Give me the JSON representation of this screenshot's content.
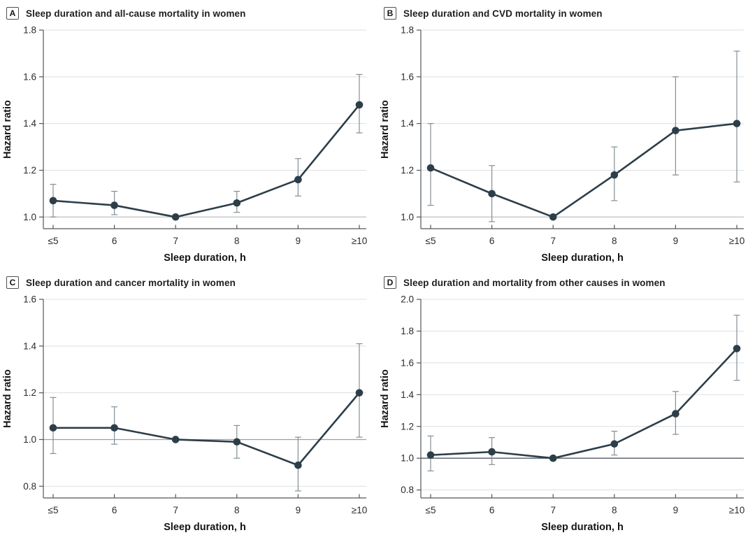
{
  "figure": {
    "background": "#ffffff",
    "series_color": "#2d3e49",
    "error_bar_color": "#848f96",
    "gridline_color": "#dcdfe1",
    "axis_color": "#50575c",
    "tick_text_color": "#2b2b2b",
    "label_text_color": "#141414"
  },
  "chart_data": [
    {
      "type": "line",
      "panel_label": "A",
      "title": "Sleep duration and all-cause mortality in women",
      "xlabel": "Sleep duration, h",
      "ylabel": "Hazard ratio",
      "categories": [
        "≤5",
        "6",
        "7",
        "8",
        "9",
        "≥10"
      ],
      "yticks": [
        1.0,
        1.2,
        1.4,
        1.6,
        1.8
      ],
      "ylim": [
        0.95,
        1.8
      ],
      "grid": true,
      "legend": "none",
      "reference_line": 1.0,
      "reference_line_color": "#c3c7ca",
      "series": [
        {
          "values": [
            1.07,
            1.05,
            1.0,
            1.06,
            1.16,
            1.48
          ],
          "ci_low": [
            1.0,
            1.01,
            null,
            1.02,
            1.09,
            1.36
          ],
          "ci_high": [
            1.14,
            1.11,
            null,
            1.11,
            1.25,
            1.61
          ]
        }
      ]
    },
    {
      "type": "line",
      "panel_label": "B",
      "title": "Sleep duration and CVD mortality in women",
      "xlabel": "Sleep duration, h",
      "ylabel": "Hazard ratio",
      "categories": [
        "≤5",
        "6",
        "7",
        "8",
        "9",
        "≥10"
      ],
      "yticks": [
        1.0,
        1.2,
        1.4,
        1.6,
        1.8
      ],
      "ylim": [
        0.95,
        1.8
      ],
      "grid": true,
      "legend": "none",
      "reference_line": 1.0,
      "reference_line_color": "#c3c7ca",
      "series": [
        {
          "values": [
            1.21,
            1.1,
            1.0,
            1.18,
            1.37,
            1.4
          ],
          "ci_low": [
            1.05,
            0.98,
            null,
            1.07,
            1.18,
            1.15
          ],
          "ci_high": [
            1.4,
            1.22,
            null,
            1.3,
            1.6,
            1.71
          ]
        }
      ]
    },
    {
      "type": "line",
      "panel_label": "C",
      "title": "Sleep duration and cancer mortality in women",
      "xlabel": "Sleep duration, h",
      "ylabel": "Hazard ratio",
      "categories": [
        "≤5",
        "6",
        "7",
        "8",
        "9",
        "≥10"
      ],
      "yticks": [
        0.8,
        1.0,
        1.2,
        1.4,
        1.6
      ],
      "ylim": [
        0.75,
        1.6
      ],
      "grid": true,
      "legend": "none",
      "reference_line": 1.0,
      "reference_line_color": "#999fa4",
      "series": [
        {
          "values": [
            1.05,
            1.05,
            1.0,
            0.99,
            0.89,
            1.2
          ],
          "ci_low": [
            0.94,
            0.98,
            null,
            0.92,
            0.78,
            1.01
          ],
          "ci_high": [
            1.18,
            1.14,
            null,
            1.06,
            1.01,
            1.41
          ]
        }
      ]
    },
    {
      "type": "line",
      "panel_label": "D",
      "title": "Sleep duration and mortality from other causes in women",
      "xlabel": "Sleep duration, h",
      "ylabel": "Hazard ratio",
      "categories": [
        "≤5",
        "6",
        "7",
        "8",
        "9",
        "≥10"
      ],
      "yticks": [
        0.8,
        1.0,
        1.2,
        1.4,
        1.6,
        1.8,
        2.0
      ],
      "ylim": [
        0.75,
        2.0
      ],
      "grid": true,
      "legend": "none",
      "reference_line": 1.0,
      "reference_line_color": "#525c64",
      "series": [
        {
          "values": [
            1.02,
            1.04,
            1.0,
            1.09,
            1.28,
            1.69
          ],
          "ci_low": [
            0.92,
            0.96,
            null,
            1.02,
            1.15,
            1.49
          ],
          "ci_high": [
            1.14,
            1.13,
            null,
            1.17,
            1.42,
            1.9
          ]
        }
      ]
    }
  ]
}
